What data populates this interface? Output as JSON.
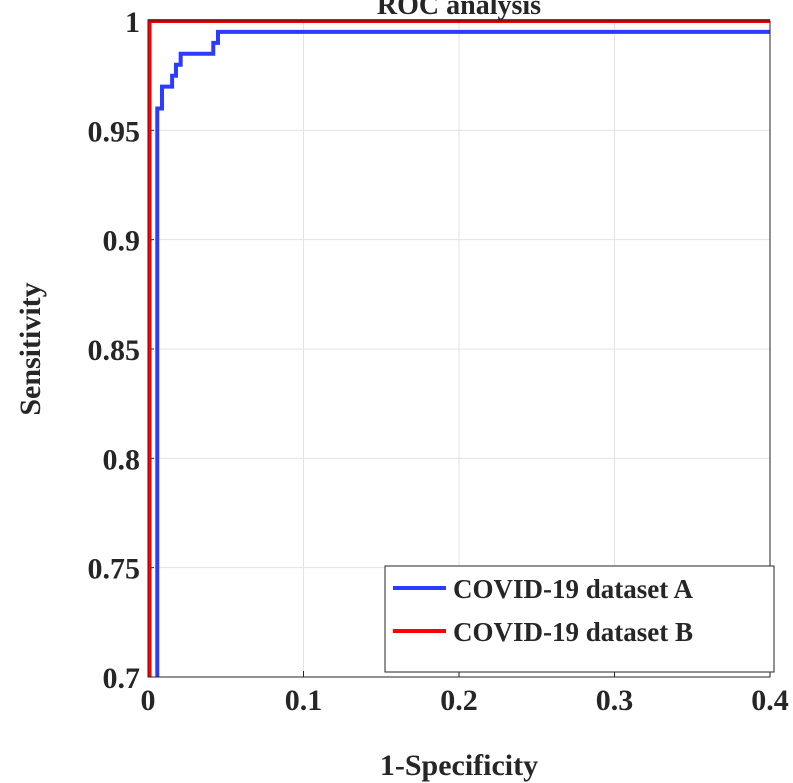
{
  "chart_data": {
    "type": "line",
    "title": "ROC analysis",
    "xlabel": "1-Specificity",
    "ylabel": "Sensitivity",
    "xlim": [
      0,
      0.4
    ],
    "ylim": [
      0.7,
      1
    ],
    "grid": true,
    "xticks": [
      0,
      0.1,
      0.2,
      0.3,
      0.4
    ],
    "xtick_labels": [
      "0",
      "0.1",
      "0.2",
      "0.3",
      "0.4"
    ],
    "yticks": [
      0.7,
      0.75,
      0.8,
      0.85,
      0.9,
      0.95,
      1
    ],
    "ytick_labels": [
      "0.7",
      "0.75",
      "0.8",
      "0.85",
      "0.9",
      "0.95",
      "1"
    ],
    "legend_position": "bottom-right",
    "series": [
      {
        "name": "COVID-19 dataset A",
        "color": "#2b3bff",
        "x": [
          0.006,
          0.006,
          0.009,
          0.009,
          0.0155,
          0.0155,
          0.018,
          0.018,
          0.021,
          0.021,
          0.042,
          0.042,
          0.045,
          0.045,
          0.4
        ],
        "y": [
          0.7,
          0.96,
          0.96,
          0.97,
          0.97,
          0.975,
          0.975,
          0.98,
          0.98,
          0.985,
          0.985,
          0.99,
          0.99,
          0.995,
          0.995
        ]
      },
      {
        "name": "COVID-19 dataset B",
        "color": "#ff0000",
        "x": [
          0.001,
          0.001,
          0.4
        ],
        "y": [
          0.7,
          1.0,
          1.0
        ]
      }
    ]
  }
}
